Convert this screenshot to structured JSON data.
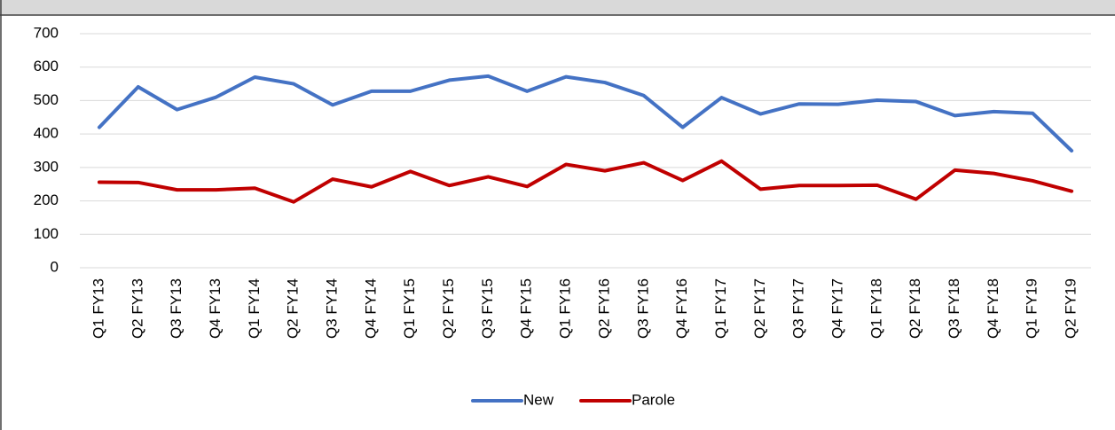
{
  "chart_data": {
    "type": "line",
    "categories": [
      "Q1 FY13",
      "Q2 FY13",
      "Q3 FY13",
      "Q4 FY13",
      "Q1 FY14",
      "Q2 FY14",
      "Q3 FY14",
      "Q4 FY14",
      "Q1 FY15",
      "Q2 FY15",
      "Q3 FY15",
      "Q4 FY15",
      "Q1 FY16",
      "Q2 FY16",
      "Q3 FY16",
      "Q4 FY16",
      "Q1 FY17",
      "Q2 FY17",
      "Q3 FY17",
      "Q4 FY17",
      "Q1 FY18",
      "Q2 FY18",
      "Q3 FY18",
      "Q4 FY18",
      "Q1 FY19",
      "Q2 FY19"
    ],
    "series": [
      {
        "name": "New",
        "color": "#4472c4",
        "values": [
          420,
          541,
          473,
          510,
          570,
          550,
          487,
          528,
          528,
          561,
          573,
          528,
          571,
          554,
          515,
          420,
          509,
          460,
          490,
          489,
          501,
          497,
          455,
          467,
          462,
          350
        ]
      },
      {
        "name": "Parole",
        "color": "#c00000",
        "values": [
          256,
          255,
          233,
          233,
          238,
          197,
          265,
          242,
          288,
          246,
          272,
          243,
          309,
          290,
          314,
          261,
          319,
          235,
          246,
          246,
          247,
          205,
          292,
          282,
          260,
          229
        ]
      }
    ],
    "ylim": [
      0,
      700
    ],
    "yticks": [
      0,
      100,
      200,
      300,
      400,
      500,
      600,
      700
    ],
    "grid": true,
    "legend": "bottom"
  }
}
